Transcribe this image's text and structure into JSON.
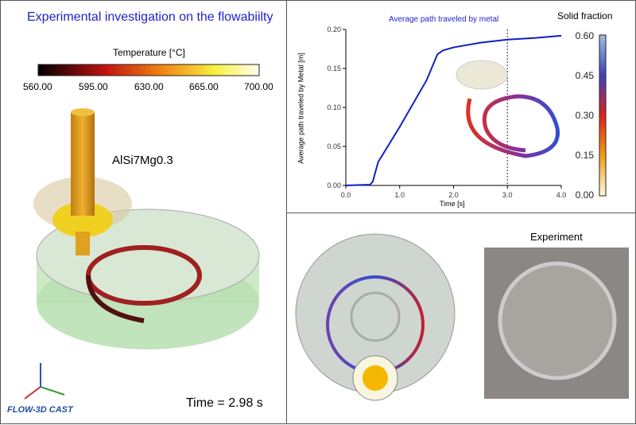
{
  "left": {
    "title": "Experimental investigation on the flowabiilty",
    "legend_title": "Temperature [°C]",
    "legend_ticks": [
      "560.00",
      "595.00",
      "630.00",
      "665.00",
      "700.00"
    ],
    "alloy": "AlSi7Mg0.3",
    "time": "Time = 2.98 s",
    "logo": "FLOW-3D CAST",
    "axes": [
      "Z",
      "X",
      "Y"
    ]
  },
  "colors": {
    "title": "#2222cc",
    "curve": "#1020c0",
    "spiral_hot": "#c02020"
  },
  "chart_data": {
    "type": "line",
    "title": "Average path traveled by metal",
    "xlabel": "Time [s]",
    "ylabel": "Average path traveled by Metal [m]",
    "xlim": [
      0,
      4
    ],
    "ylim": [
      0,
      0.2
    ],
    "x_ticks": [
      "0.0",
      "1.0",
      "2.0",
      "3.0",
      "4.0"
    ],
    "y_ticks": [
      "0.00",
      "0.05",
      "0.10",
      "0.15",
      "0.20"
    ],
    "x": [
      0,
      0.45,
      0.5,
      0.6,
      1.0,
      1.5,
      1.7,
      1.8,
      2.0,
      2.5,
      3.0,
      3.5,
      4.0
    ],
    "y": [
      0,
      0.001,
      0.005,
      0.03,
      0.075,
      0.135,
      0.168,
      0.173,
      0.177,
      0.183,
      0.187,
      0.189,
      0.192
    ],
    "marker_time": 3.0
  },
  "solid": {
    "title": "Solid fraction",
    "ticks": [
      "0.60",
      "0.45",
      "0.30",
      "0.15",
      "0.00"
    ]
  },
  "experiment": {
    "title": "Experiment"
  }
}
